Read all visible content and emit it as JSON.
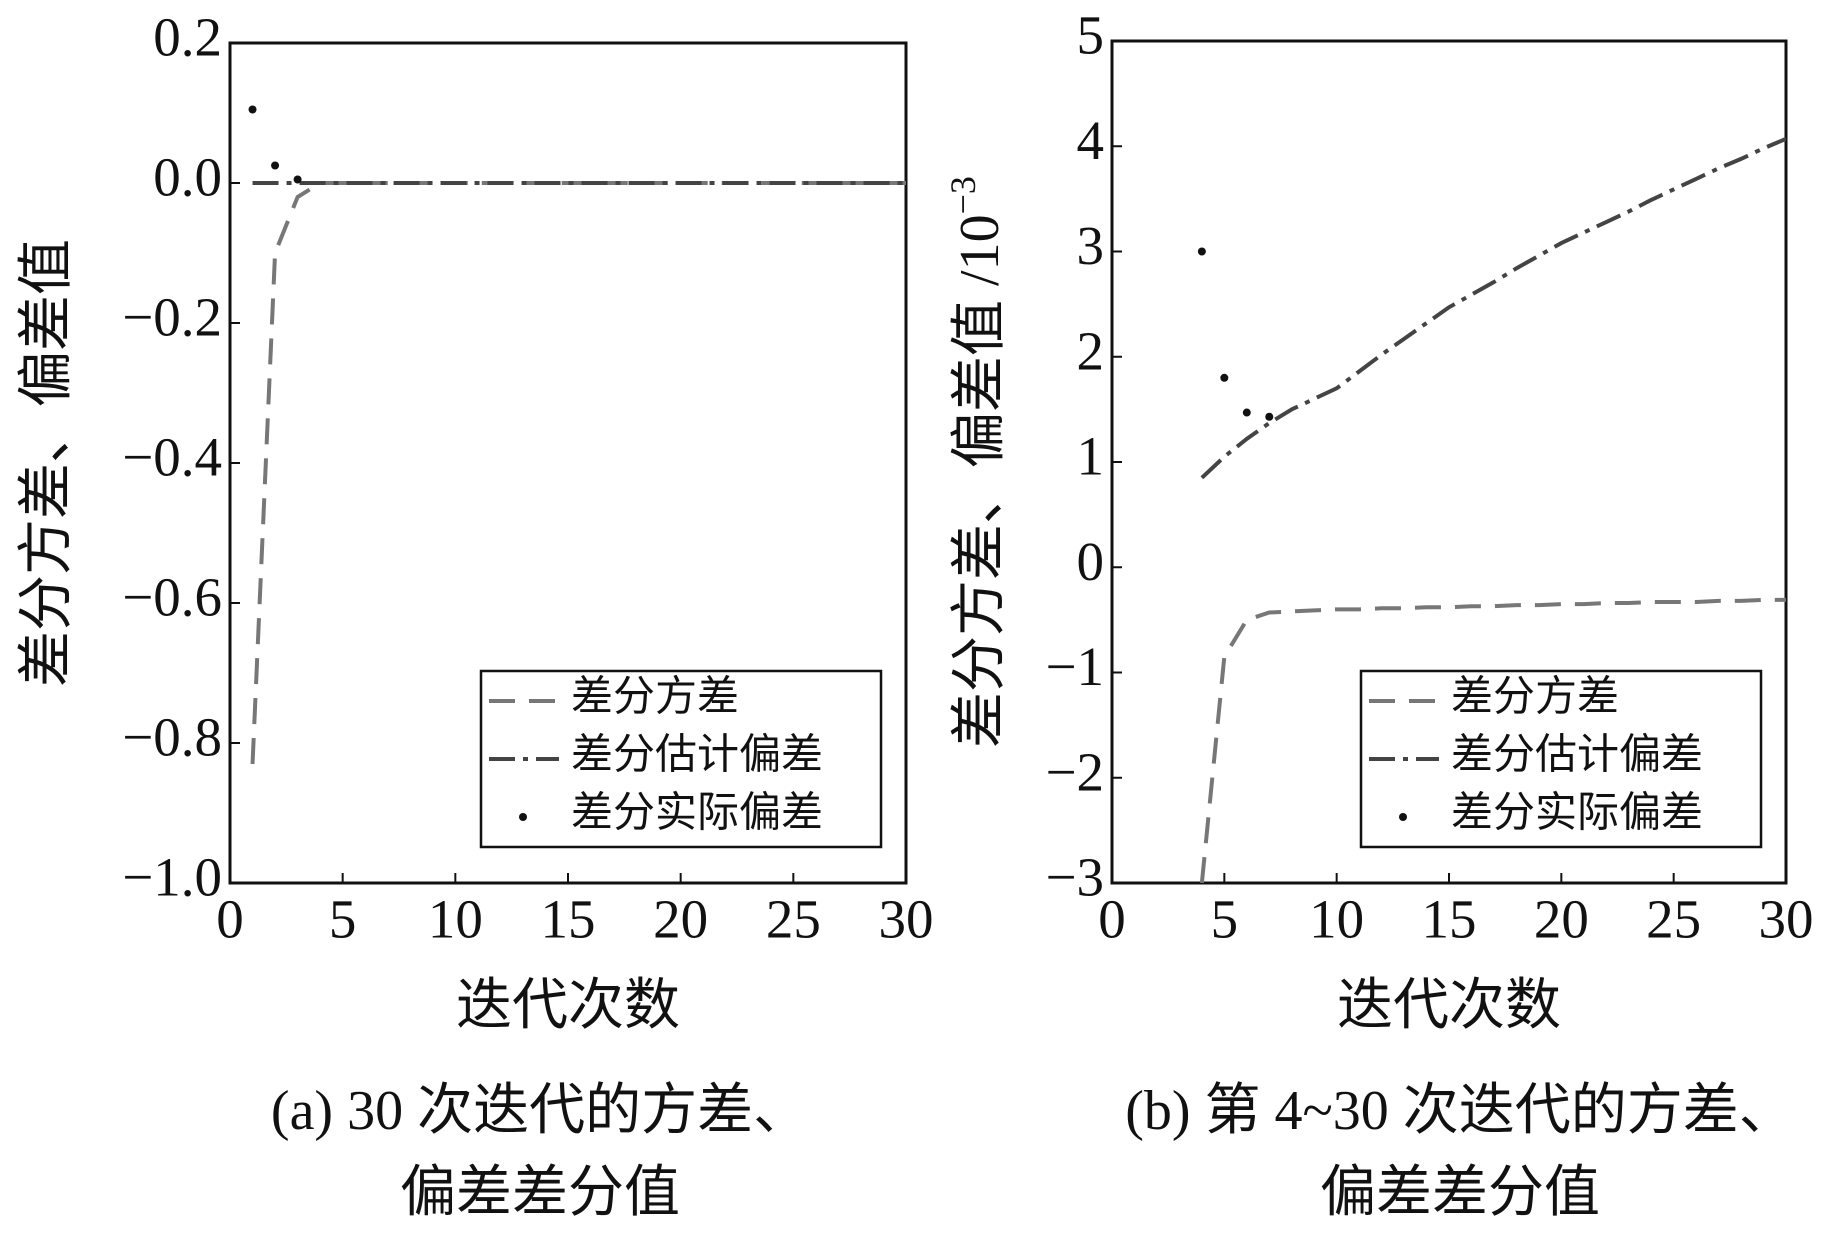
{
  "chart_data": [
    {
      "type": "line",
      "xlabel": "迭代次数",
      "ylabel": "差分方差、偏差值",
      "caption": [
        "(a) 30 次迭代的方差、",
        "偏差差分值"
      ],
      "xlim": [
        0,
        30
      ],
      "ylim": [
        -1.0,
        0.2
      ],
      "xticks": [
        0,
        5,
        10,
        15,
        20,
        25,
        30
      ],
      "yticks": [
        {
          "value": 0.2,
          "label": "0.2"
        },
        {
          "value": 0,
          "label": "0.0"
        },
        {
          "value": -0.2,
          "label": "−0.2"
        },
        {
          "value": -0.4,
          "label": "−0.4"
        },
        {
          "value": -0.6,
          "label": "−0.6"
        },
        {
          "value": -0.8,
          "label": "−0.8"
        },
        {
          "value": -1.0,
          "label": "−1.0"
        }
      ],
      "legend": "lower right",
      "series": [
        {
          "name": "差分方差",
          "style": "dashed",
          "color": "#777777",
          "x": [
            1,
            2,
            3,
            4,
            5,
            6,
            7,
            8,
            9,
            10,
            11,
            12,
            13,
            14,
            15,
            16,
            17,
            18,
            19,
            20,
            21,
            22,
            23,
            24,
            25,
            26,
            27,
            28,
            29,
            30
          ],
          "values": [
            -0.83,
            -0.1,
            -0.02,
            0,
            0,
            0,
            0,
            0,
            0,
            0,
            0,
            0,
            0,
            0,
            0,
            0,
            0,
            0,
            0,
            0,
            0,
            0,
            0,
            0,
            0,
            0,
            0,
            0,
            0,
            0
          ]
        },
        {
          "name": "差分估计偏差",
          "style": "dashdot",
          "color": "#444444",
          "x": [
            1,
            2,
            3,
            4,
            5,
            6,
            7,
            8,
            9,
            10,
            11,
            12,
            13,
            14,
            15,
            16,
            17,
            18,
            19,
            20,
            21,
            22,
            23,
            24,
            25,
            26,
            27,
            28,
            29,
            30
          ],
          "values": [
            0,
            0,
            0,
            0,
            0,
            0,
            0,
            0,
            0,
            0,
            0,
            0,
            0,
            0,
            0,
            0,
            0,
            0,
            0,
            0,
            0,
            0,
            0,
            0,
            0,
            0,
            0,
            0,
            0,
            0
          ]
        },
        {
          "name": "差分实际偏差",
          "style": "points",
          "color": "#111111",
          "x": [
            1,
            2,
            3
          ],
          "values": [
            0.105,
            0.025,
            0.005
          ]
        }
      ]
    },
    {
      "type": "line",
      "xlabel": "迭代次数",
      "ylabel": "差分方差、偏差值 /10",
      "ylabel_exponent": "−3",
      "caption": [
        "(b) 第 4~30 次迭代的方差、",
        "偏差差分值"
      ],
      "xlim": [
        0,
        30
      ],
      "ylim": [
        -3,
        5
      ],
      "xticks": [
        0,
        5,
        10,
        15,
        20,
        25,
        30
      ],
      "yticks": [
        5,
        4,
        3,
        2,
        1,
        0,
        {
          "value": -1,
          "label": "−1"
        },
        {
          "value": -2,
          "label": "−2"
        },
        {
          "value": -3,
          "label": "−3"
        }
      ],
      "legend": "lower right",
      "series": [
        {
          "name": "差分方差",
          "style": "dashed",
          "color": "#777777",
          "x": [
            4,
            5,
            6,
            7,
            8,
            9,
            10,
            11,
            12,
            13,
            14,
            15,
            16,
            17,
            18,
            19,
            20,
            21,
            22,
            23,
            24,
            25,
            26,
            27,
            28,
            29,
            30
          ],
          "values": [
            -3,
            -0.85,
            -0.5,
            -0.43,
            -0.42,
            -0.41,
            -0.4,
            -0.4,
            -0.39,
            -0.39,
            -0.38,
            -0.38,
            -0.37,
            -0.37,
            -0.36,
            -0.36,
            -0.35,
            -0.35,
            -0.34,
            -0.34,
            -0.33,
            -0.33,
            -0.33,
            -0.32,
            -0.32,
            -0.31,
            -0.31
          ]
        },
        {
          "name": "差分估计偏差",
          "style": "dashdot",
          "color": "#444444",
          "x": [
            4,
            5,
            6,
            7,
            8,
            9,
            10,
            11,
            12,
            13,
            14,
            15,
            16,
            17,
            18,
            19,
            20,
            21,
            22,
            23,
            24,
            25,
            26,
            27,
            28,
            29,
            30
          ],
          "values": [
            0.85,
            1.05,
            1.22,
            1.37,
            1.5,
            1.6,
            1.7,
            1.86,
            2.02,
            2.17,
            2.32,
            2.47,
            2.59,
            2.71,
            2.84,
            2.96,
            3.08,
            3.18,
            3.28,
            3.38,
            3.49,
            3.59,
            3.69,
            3.79,
            3.88,
            3.98,
            4.07
          ]
        },
        {
          "name": "差分实际偏差",
          "style": "points",
          "color": "#111111",
          "x": [
            4,
            5,
            6,
            7
          ],
          "values": [
            3.0,
            1.8,
            1.47,
            1.43
          ]
        }
      ]
    }
  ]
}
